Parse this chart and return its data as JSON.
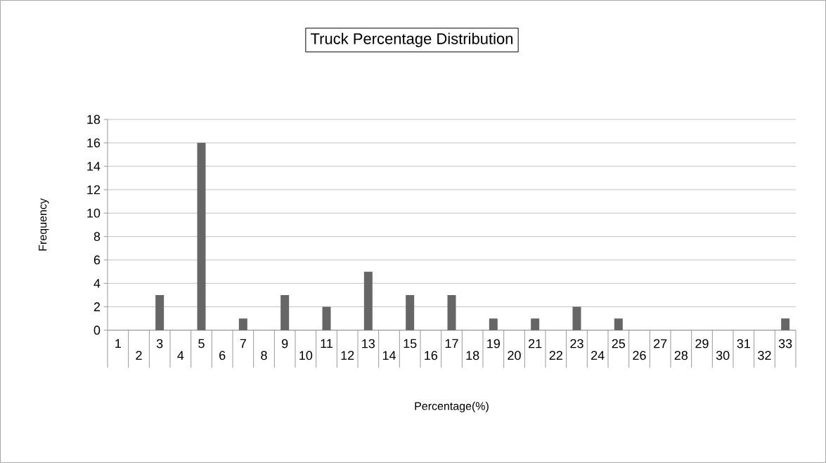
{
  "chart_data": {
    "type": "bar",
    "title": "Truck Percentage Distribution",
    "xlabel": "Percentage(%)",
    "ylabel": "Frequency",
    "categories": [
      "1",
      "2",
      "3",
      "4",
      "5",
      "6",
      "7",
      "8",
      "9",
      "10",
      "11",
      "12",
      "13",
      "14",
      "15",
      "16",
      "17",
      "18",
      "19",
      "20",
      "21",
      "22",
      "23",
      "24",
      "25",
      "26",
      "27",
      "28",
      "29",
      "30",
      "31",
      "32",
      "33"
    ],
    "values": [
      0,
      0,
      3,
      0,
      16,
      0,
      1,
      0,
      3,
      0,
      2,
      0,
      5,
      0,
      3,
      0,
      3,
      0,
      1,
      0,
      1,
      0,
      2,
      0,
      1,
      0,
      0,
      0,
      0,
      0,
      0,
      0,
      1
    ],
    "color": "#666666",
    "ylim": [
      0,
      18
    ],
    "yticks": [
      0,
      2,
      4,
      6,
      8,
      10,
      12,
      14,
      16,
      18
    ],
    "grid": "y"
  }
}
